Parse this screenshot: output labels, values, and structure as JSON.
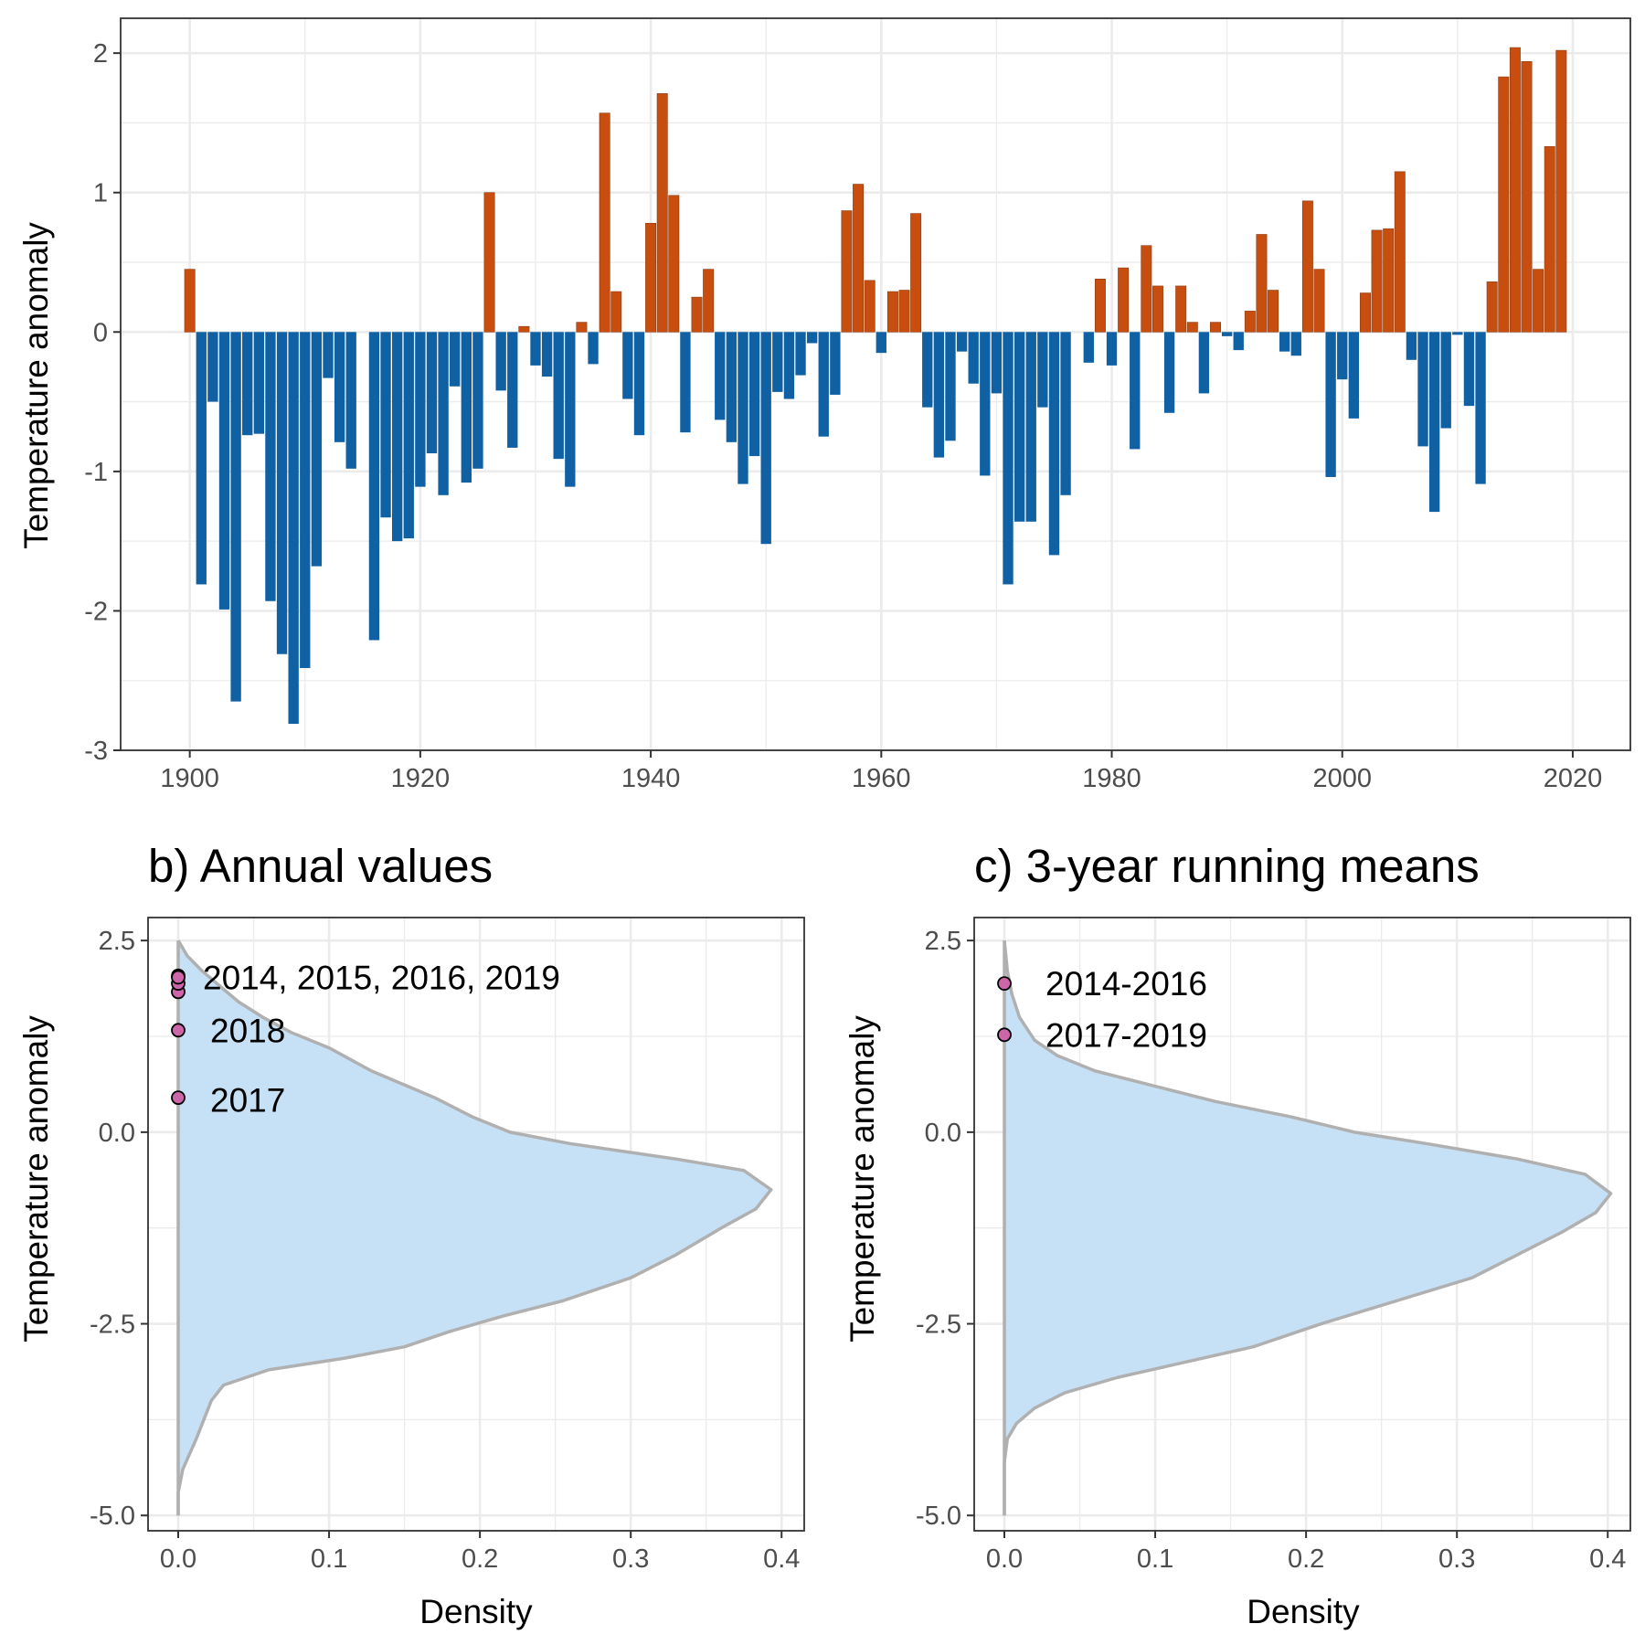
{
  "chart_data": [
    {
      "type": "bar",
      "title": "",
      "xlabel": "",
      "ylabel": "Temperature anomaly",
      "xlim": [
        1894,
        2025
      ],
      "ylim": [
        -3,
        2.25
      ],
      "x_ticks": [
        1900,
        1920,
        1940,
        1960,
        1980,
        2000,
        2020
      ],
      "y_ticks": [
        -3,
        -2,
        -1,
        0,
        1,
        2
      ],
      "grid": true,
      "colors": {
        "positive": "#c84e10",
        "negative": "#1061a3"
      },
      "x": [
        1900,
        1901,
        1902,
        1903,
        1904,
        1905,
        1906,
        1907,
        1908,
        1909,
        1910,
        1911,
        1912,
        1913,
        1914,
        1915,
        1916,
        1917,
        1918,
        1919,
        1920,
        1921,
        1922,
        1923,
        1924,
        1925,
        1926,
        1927,
        1928,
        1929,
        1930,
        1931,
        1932,
        1933,
        1934,
        1935,
        1936,
        1937,
        1938,
        1939,
        1940,
        1941,
        1942,
        1943,
        1944,
        1945,
        1946,
        1947,
        1948,
        1949,
        1950,
        1951,
        1952,
        1953,
        1954,
        1955,
        1956,
        1957,
        1958,
        1959,
        1960,
        1961,
        1962,
        1963,
        1964,
        1965,
        1966,
        1967,
        1968,
        1969,
        1970,
        1971,
        1972,
        1973,
        1974,
        1975,
        1976,
        1977,
        1978,
        1979,
        1980,
        1981,
        1982,
        1983,
        1984,
        1985,
        1986,
        1987,
        1988,
        1989,
        1990,
        1991,
        1992,
        1993,
        1994,
        1995,
        1996,
        1997,
        1998,
        1999,
        2000,
        2001,
        2002,
        2003,
        2004,
        2005,
        2006,
        2007,
        2008,
        2009,
        2010,
        2011,
        2012,
        2013,
        2014,
        2015,
        2016,
        2017,
        2018,
        2019
      ],
      "values": [
        0.45,
        -1.81,
        -0.5,
        -1.99,
        -2.65,
        -0.74,
        -0.73,
        -1.93,
        -2.31,
        -2.81,
        -2.41,
        -1.68,
        -0.33,
        -0.79,
        -0.98,
        0.0,
        -2.21,
        -1.33,
        -1.5,
        -1.48,
        -1.11,
        -0.87,
        -1.17,
        -0.39,
        -1.08,
        -0.98,
        1.0,
        -0.42,
        -0.83,
        0.04,
        -0.24,
        -0.32,
        -0.91,
        -1.11,
        0.07,
        -0.23,
        1.57,
        0.29,
        -0.48,
        -0.74,
        0.78,
        1.71,
        0.98,
        -0.72,
        0.25,
        0.45,
        -0.63,
        -0.79,
        -1.09,
        -0.89,
        -1.52,
        -0.43,
        -0.48,
        -0.31,
        -0.08,
        -0.75,
        -0.45,
        0.87,
        1.06,
        0.37,
        -0.15,
        0.29,
        0.3,
        0.85,
        -0.54,
        -0.9,
        -0.78,
        -0.14,
        -0.37,
        -1.03,
        -0.44,
        -1.81,
        -1.36,
        -1.36,
        -0.54,
        -1.6,
        -1.17,
        0.0,
        -0.22,
        0.38,
        -0.24,
        0.46,
        -0.84,
        0.62,
        0.33,
        -0.58,
        0.33,
        0.07,
        -0.44,
        0.07,
        -0.03,
        -0.13,
        0.15,
        0.7,
        0.3,
        -0.14,
        -0.17,
        0.94,
        0.45,
        -1.04,
        -0.34,
        -0.62,
        0.28,
        0.73,
        0.74,
        1.15,
        -0.2,
        -0.82,
        -1.29,
        -0.69,
        -0.02,
        -0.53,
        -1.09,
        0.36,
        1.83,
        2.04,
        1.94,
        0.45,
        1.33,
        2.02
      ]
    },
    {
      "type": "area",
      "title": "b) Annual values",
      "xlabel": "Density",
      "ylabel": "Temperature anomaly",
      "xlim": [
        -0.02,
        0.415
      ],
      "ylim": [
        -5.2,
        2.8
      ],
      "x_ticks": [
        0.0,
        0.1,
        0.2,
        0.3,
        0.4
      ],
      "y_ticks": [
        -5.0,
        -2.5,
        0.0,
        2.5
      ],
      "grid": true,
      "fill": "#c6e1f6",
      "line": "#b0b0b0",
      "density_curve": [
        [
          -5.0,
          0.0
        ],
        [
          -4.7,
          0.0
        ],
        [
          -4.4,
          0.003
        ],
        [
          -4.0,
          0.012
        ],
        [
          -3.7,
          0.018
        ],
        [
          -3.5,
          0.022
        ],
        [
          -3.3,
          0.03
        ],
        [
          -3.1,
          0.06
        ],
        [
          -2.95,
          0.11
        ],
        [
          -2.8,
          0.15
        ],
        [
          -2.6,
          0.18
        ],
        [
          -2.4,
          0.215
        ],
        [
          -2.2,
          0.255
        ],
        [
          -1.9,
          0.3
        ],
        [
          -1.6,
          0.33
        ],
        [
          -1.25,
          0.36
        ],
        [
          -1.0,
          0.383
        ],
        [
          -0.75,
          0.393
        ],
        [
          -0.5,
          0.375
        ],
        [
          -0.35,
          0.33
        ],
        [
          -0.15,
          0.26
        ],
        [
          0.0,
          0.22
        ],
        [
          0.2,
          0.195
        ],
        [
          0.45,
          0.17
        ],
        [
          0.8,
          0.128
        ],
        [
          1.1,
          0.1
        ],
        [
          1.3,
          0.075
        ],
        [
          1.5,
          0.056
        ],
        [
          1.7,
          0.04
        ],
        [
          1.9,
          0.028
        ],
        [
          2.1,
          0.016
        ],
        [
          2.3,
          0.006
        ],
        [
          2.5,
          0.0
        ]
      ],
      "highlights": [
        {
          "year": "2014",
          "value": 1.83
        },
        {
          "year": "2015",
          "value": 2.04
        },
        {
          "year": "2016",
          "value": 1.94
        },
        {
          "year": "2019",
          "value": 2.02
        },
        {
          "year": "2018",
          "value": 1.33
        },
        {
          "year": "2017",
          "value": 0.45
        }
      ],
      "annotations": [
        {
          "text": "2014, 2015, 2016, 2019",
          "y": 2.02
        },
        {
          "text": "2018",
          "y": 1.33
        },
        {
          "text": "2017",
          "y": 0.42
        }
      ],
      "highlight_color": "#cc66a8"
    },
    {
      "type": "area",
      "title": "c) 3-year running means",
      "xlabel": "Density",
      "ylabel": "Temperature anomaly",
      "xlim": [
        -0.02,
        0.415
      ],
      "ylim": [
        -5.2,
        2.8
      ],
      "x_ticks": [
        0.0,
        0.1,
        0.2,
        0.3,
        0.4
      ],
      "y_ticks": [
        -5.0,
        -2.5,
        0.0,
        2.5
      ],
      "grid": true,
      "fill": "#c6e1f6",
      "line": "#b0b0b0",
      "density_curve": [
        [
          -5.0,
          0.0
        ],
        [
          -4.3,
          0.0
        ],
        [
          -4.0,
          0.002
        ],
        [
          -3.8,
          0.008
        ],
        [
          -3.6,
          0.02
        ],
        [
          -3.4,
          0.04
        ],
        [
          -3.2,
          0.075
        ],
        [
          -3.0,
          0.12
        ],
        [
          -2.8,
          0.165
        ],
        [
          -2.5,
          0.21
        ],
        [
          -2.2,
          0.26
        ],
        [
          -1.9,
          0.31
        ],
        [
          -1.6,
          0.34
        ],
        [
          -1.3,
          0.37
        ],
        [
          -1.05,
          0.392
        ],
        [
          -0.8,
          0.402
        ],
        [
          -0.55,
          0.385
        ],
        [
          -0.35,
          0.34
        ],
        [
          -0.15,
          0.28
        ],
        [
          0.0,
          0.232
        ],
        [
          0.2,
          0.19
        ],
        [
          0.4,
          0.14
        ],
        [
          0.6,
          0.1
        ],
        [
          0.8,
          0.06
        ],
        [
          1.0,
          0.035
        ],
        [
          1.2,
          0.02
        ],
        [
          1.5,
          0.01
        ],
        [
          1.8,
          0.005
        ],
        [
          2.1,
          0.002
        ],
        [
          2.5,
          0.0
        ]
      ],
      "highlights": [
        {
          "year": "2014-2016",
          "value": 1.94
        },
        {
          "year": "2017-2019",
          "value": 1.27
        }
      ],
      "annotations": [
        {
          "text": "2014-2016",
          "y": 1.94
        },
        {
          "text": "2017-2019",
          "y": 1.27
        }
      ],
      "highlight_color": "#cc66a8"
    }
  ]
}
